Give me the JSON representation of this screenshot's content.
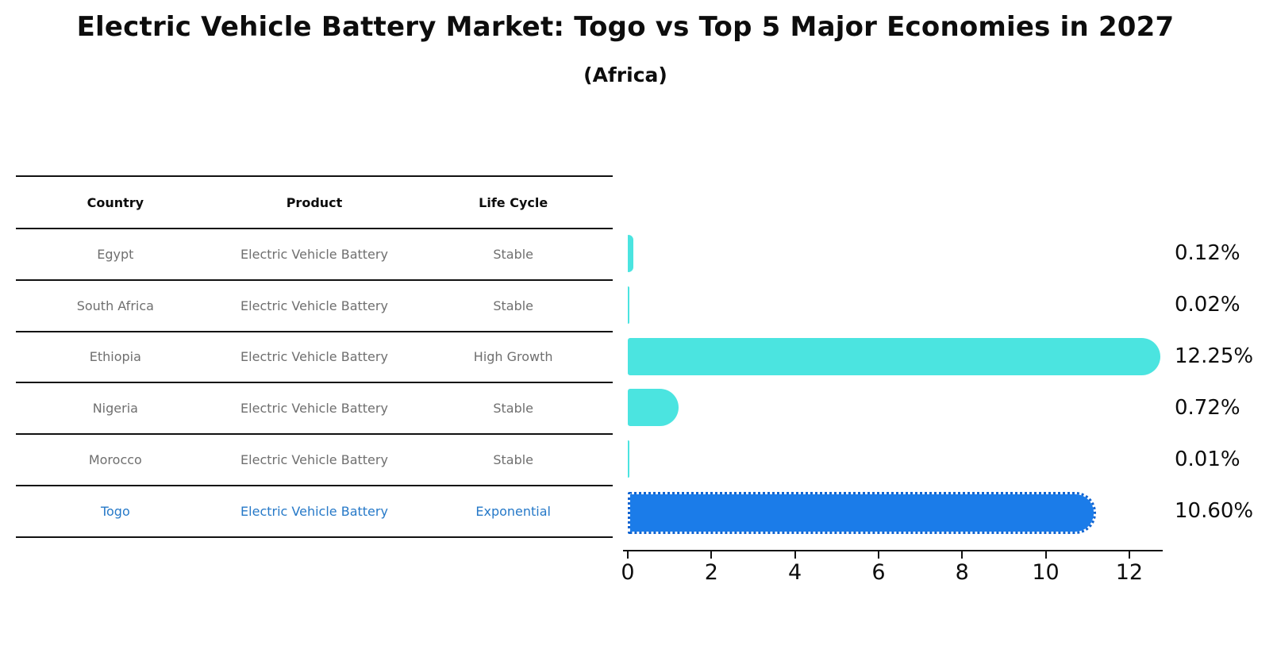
{
  "title": "Electric Vehicle Battery Market: Togo vs Top 5 Major Economies in 2027",
  "subtitle": "(Africa)",
  "table": {
    "headers": [
      "Country",
      "Product",
      "Life Cycle"
    ],
    "rows": [
      {
        "country": "Egypt",
        "product": "Electric Vehicle Battery",
        "life_cycle": "Stable",
        "highlight": false
      },
      {
        "country": "South Africa",
        "product": "Electric Vehicle Battery",
        "life_cycle": "Stable",
        "highlight": false
      },
      {
        "country": "Ethiopia",
        "product": "Electric Vehicle Battery",
        "life_cycle": "High Growth",
        "highlight": false
      },
      {
        "country": "Nigeria",
        "product": "Electric Vehicle Battery",
        "life_cycle": "Stable",
        "highlight": false
      },
      {
        "country": "Morocco",
        "product": "Electric Vehicle Battery",
        "life_cycle": "Stable",
        "highlight": false
      },
      {
        "country": "Togo",
        "product": "Electric Vehicle Battery",
        "life_cycle": "Exponential",
        "highlight": true
      }
    ]
  },
  "chart_data": {
    "type": "bar",
    "orientation": "horizontal",
    "categories": [
      "Egypt",
      "South Africa",
      "Ethiopia",
      "Nigeria",
      "Morocco",
      "Togo"
    ],
    "values": [
      0.12,
      0.02,
      12.25,
      0.72,
      0.01,
      10.6
    ],
    "value_labels": [
      "0.12%",
      "0.02%",
      "12.25%",
      "0.72%",
      "0.01%",
      "10.60%"
    ],
    "highlight_index": 5,
    "x_ticks": [
      "0",
      "2",
      "4",
      "6",
      "8",
      "10",
      "12"
    ],
    "x_tick_values": [
      0,
      2,
      4,
      6,
      8,
      10,
      12
    ],
    "xlim": [
      0,
      12.8
    ],
    "grid": false,
    "legend": false,
    "colors": {
      "bar_default": "#4be4e0",
      "bar_highlight": "#1b7ce9",
      "highlight_text": "#2679c8",
      "row_text": "#6f6f6f",
      "axis": "#111111"
    }
  }
}
